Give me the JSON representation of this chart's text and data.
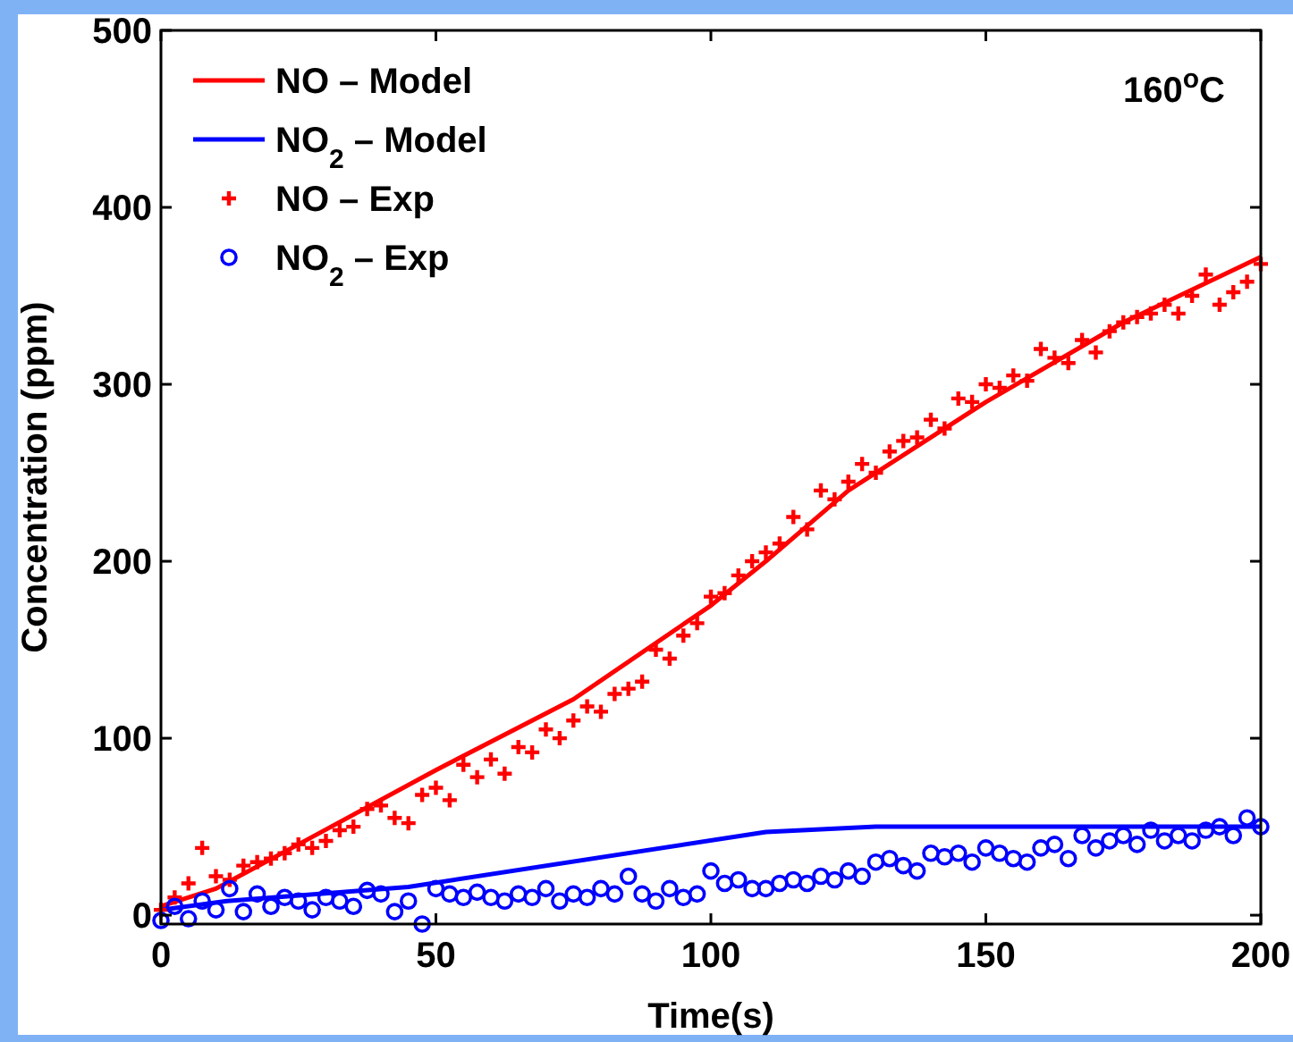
{
  "chart_data": {
    "type": "line",
    "xlabel": "Time(s)",
    "ylabel": "Concentration (ppm)",
    "annotations": [
      "160$^{o}$C"
    ],
    "xlim": [
      0,
      200
    ],
    "ylim": [
      -5,
      500
    ],
    "xticks": [
      0,
      50,
      100,
      150,
      200
    ],
    "yticks": [
      0,
      100,
      200,
      300,
      400,
      500
    ],
    "grid": false,
    "legend": "top left",
    "series": [
      {
        "name": "NO – Model",
        "color": "#ff0000",
        "marker": "none",
        "line_style": "solid",
        "x": [
          0,
          10,
          25,
          50,
          75,
          100,
          110,
          125,
          150,
          175,
          200
        ],
        "values": [
          5,
          15,
          40,
          82,
          122,
          175,
          200,
          240,
          290,
          335,
          372
        ]
      },
      {
        "name": "NO$_{2}$ – Model",
        "color": "#0000ff",
        "marker": "none",
        "line_style": "solid",
        "x": [
          0,
          12,
          45,
          110,
          130,
          160,
          200
        ],
        "values": [
          3,
          8,
          16,
          47,
          50,
          50,
          50
        ]
      },
      {
        "name": "NO – Exp",
        "type": "scatter",
        "color": "#ff0000",
        "marker": "cross",
        "x": [
          0,
          2.5,
          5,
          7.5,
          10,
          12.5,
          15,
          17.5,
          20,
          22.5,
          25,
          27.5,
          30,
          32.5,
          35,
          37.5,
          40,
          42.5,
          45,
          47.5,
          50,
          52.5,
          55,
          57.5,
          60,
          62.5,
          65,
          67.5,
          70,
          72.5,
          75,
          77.5,
          80,
          82.5,
          85,
          87.5,
          90,
          92.5,
          95,
          97.5,
          100,
          102.5,
          105,
          107.5,
          110,
          112.5,
          115,
          117.5,
          120,
          122.5,
          125,
          127.5,
          130,
          132.5,
          135,
          137.5,
          140,
          142.5,
          145,
          147.5,
          150,
          152.5,
          155,
          157.5,
          160,
          162.5,
          165,
          167.5,
          170,
          172.5,
          175,
          177.5,
          180,
          182.5,
          185,
          187.5,
          190,
          192.5,
          195,
          197.5,
          200
        ],
        "values": [
          3,
          10,
          18,
          38,
          22,
          20,
          28,
          30,
          32,
          35,
          40,
          38,
          42,
          48,
          50,
          60,
          62,
          55,
          52,
          68,
          72,
          65,
          85,
          78,
          88,
          80,
          95,
          92,
          105,
          100,
          110,
          118,
          115,
          125,
          128,
          132,
          150,
          145,
          158,
          165,
          180,
          182,
          192,
          200,
          205,
          210,
          225,
          218,
          240,
          235,
          245,
          255,
          250,
          262,
          268,
          270,
          280,
          275,
          292,
          290,
          300,
          298,
          305,
          302,
          320,
          315,
          312,
          325,
          318,
          330,
          335,
          338,
          340,
          345,
          340,
          350,
          362,
          345,
          352,
          358,
          368
        ]
      },
      {
        "name": "NO$_{2}$ – Exp",
        "type": "scatter",
        "color": "#0000ff",
        "marker": "circle",
        "x": [
          0,
          2.5,
          5,
          7.5,
          10,
          12.5,
          15,
          17.5,
          20,
          22.5,
          25,
          27.5,
          30,
          32.5,
          35,
          37.5,
          40,
          42.5,
          45,
          47.5,
          50,
          52.5,
          55,
          57.5,
          60,
          62.5,
          65,
          67.5,
          70,
          72.5,
          75,
          77.5,
          80,
          82.5,
          85,
          87.5,
          90,
          92.5,
          95,
          97.5,
          100,
          102.5,
          105,
          107.5,
          110,
          112.5,
          115,
          117.5,
          120,
          122.5,
          125,
          127.5,
          130,
          132.5,
          135,
          137.5,
          140,
          142.5,
          145,
          147.5,
          150,
          152.5,
          155,
          157.5,
          160,
          162.5,
          165,
          167.5,
          170,
          172.5,
          175,
          177.5,
          180,
          182.5,
          185,
          187.5,
          190,
          192.5,
          195,
          197.5,
          200
        ],
        "values": [
          -3,
          5,
          -2,
          8,
          3,
          15,
          2,
          12,
          5,
          10,
          8,
          3,
          10,
          8,
          5,
          14,
          12,
          2,
          8,
          -5,
          15,
          12,
          10,
          13,
          10,
          8,
          12,
          10,
          15,
          8,
          12,
          10,
          15,
          12,
          22,
          12,
          8,
          15,
          10,
          12,
          25,
          18,
          20,
          15,
          15,
          18,
          20,
          18,
          22,
          20,
          25,
          22,
          30,
          32,
          28,
          25,
          35,
          33,
          35,
          30,
          38,
          35,
          32,
          30,
          38,
          40,
          32,
          45,
          38,
          42,
          45,
          40,
          48,
          42,
          45,
          42,
          48,
          50,
          45,
          55,
          50
        ]
      }
    ]
  }
}
